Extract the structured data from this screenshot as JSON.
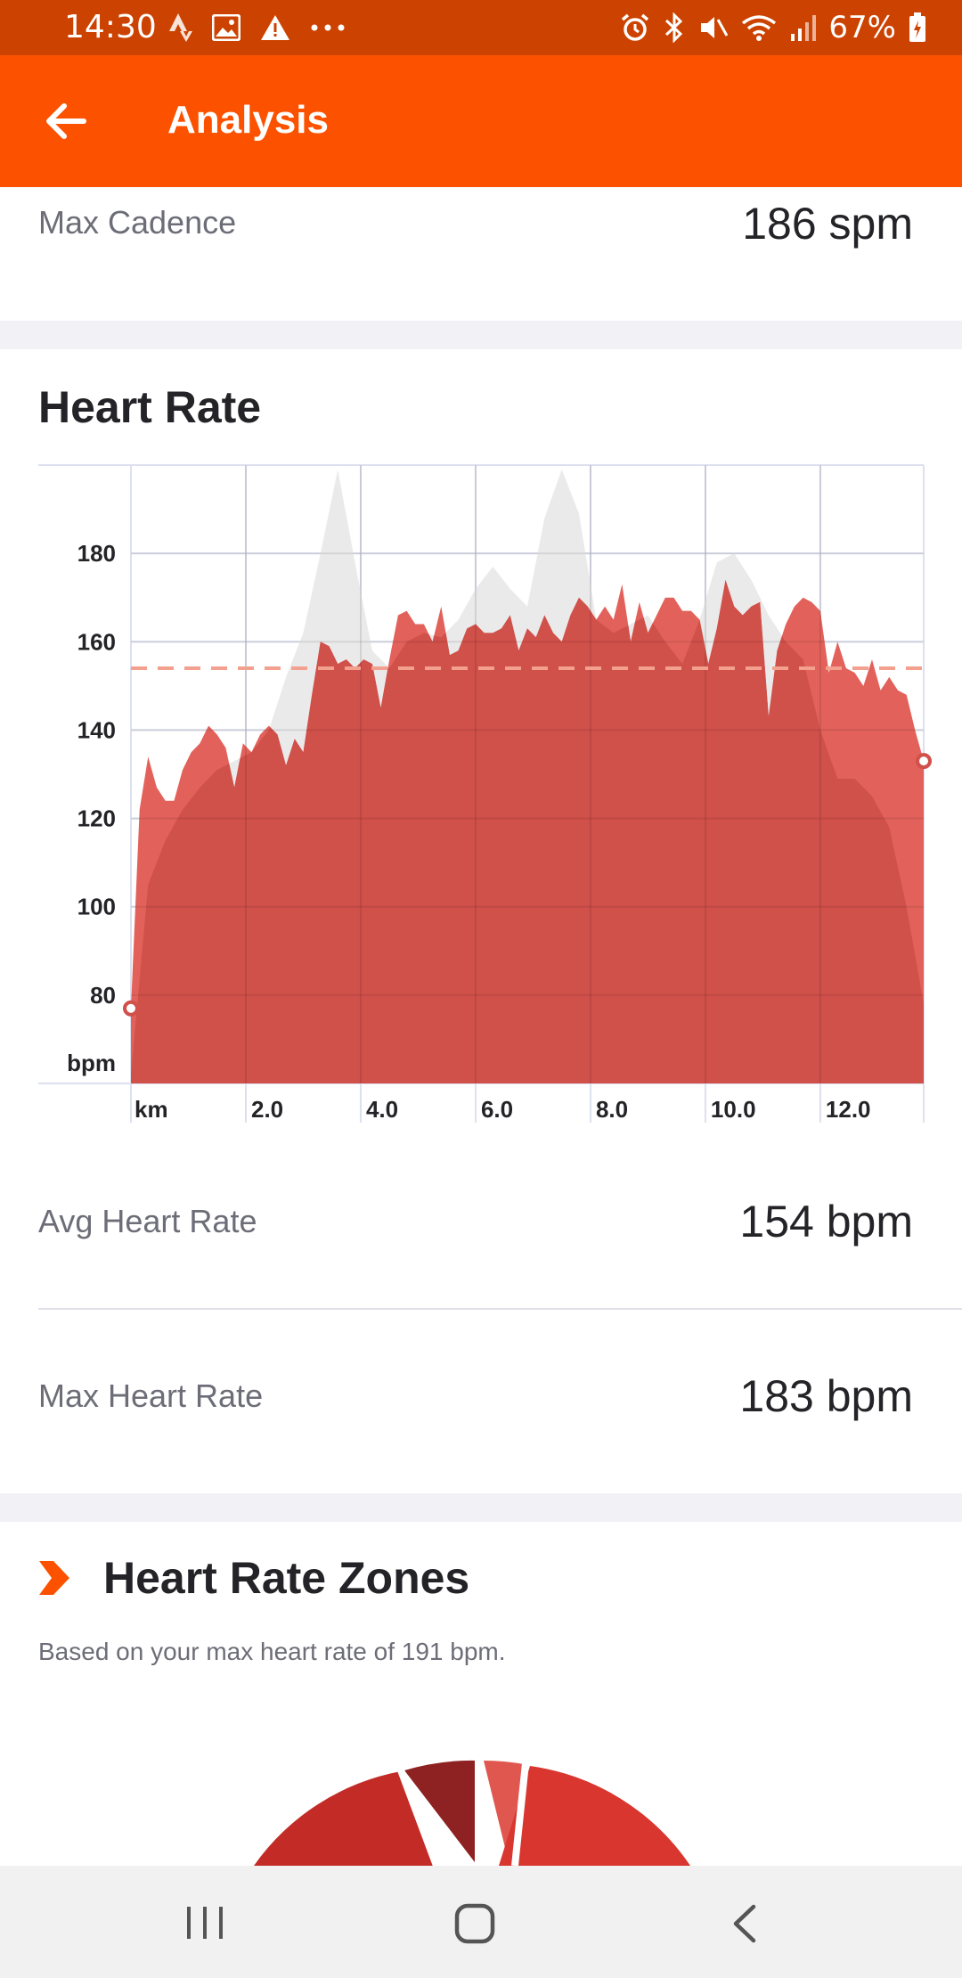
{
  "status_bar": {
    "time": "14:30",
    "icons_left": [
      "strava-icon",
      "image-icon",
      "warning-icon",
      "more-icon"
    ],
    "icons_right": [
      "alarm-icon",
      "bluetooth-icon",
      "mute-icon",
      "wifi-icon",
      "signal-icon",
      "battery-icon"
    ],
    "battery": "67%"
  },
  "app_bar": {
    "title": "Analysis",
    "back_icon": "arrow-left-icon"
  },
  "max_cadence": {
    "label": "Max Cadence",
    "value": "186 spm"
  },
  "heart_rate": {
    "title": "Heart Rate",
    "avg_label": "Avg Heart Rate",
    "avg_value": "154 bpm",
    "max_label": "Max Heart Rate",
    "max_value": "183 bpm"
  },
  "zones": {
    "title": "Heart Rate Zones",
    "note": "Based on your max heart rate of 191 bpm.",
    "icon": "chevron-right-icon",
    "colors": [
      "#c32c26",
      "#8e2222",
      "#e0574f",
      "#d8362e"
    ]
  },
  "colors": {
    "brand": "#fc5200",
    "status_bar": "#cc4200",
    "hr_fill": "#d0504a",
    "hr_fill_light": "#e05a52",
    "avg_line": "#f3a08e",
    "grey_area": "#e8e8e8"
  },
  "chart_data": {
    "type": "area",
    "title": "Heart Rate",
    "xlabel": "km",
    "ylabel": "bpm",
    "xlim": [
      0,
      13.8
    ],
    "ylim": [
      60,
      200
    ],
    "yticks": [
      80,
      100,
      120,
      140,
      160,
      180
    ],
    "xticks": [
      2.0,
      4.0,
      6.0,
      8.0,
      10.0,
      12.0
    ],
    "xtick_labels": [
      "2.0",
      "4.0",
      "6.0",
      "8.0",
      "10.0",
      "12.0"
    ],
    "avg": 154,
    "series": [
      {
        "role": "heart_rate",
        "x": [
          0,
          0.15,
          0.3,
          0.45,
          0.6,
          0.75,
          0.9,
          1.05,
          1.2,
          1.35,
          1.5,
          1.65,
          1.8,
          1.95,
          2.1,
          2.25,
          2.4,
          2.55,
          2.7,
          2.85,
          3.0,
          3.15,
          3.3,
          3.45,
          3.6,
          3.75,
          3.9,
          4.05,
          4.2,
          4.35,
          4.5,
          4.65,
          4.8,
          4.95,
          5.1,
          5.25,
          5.4,
          5.55,
          5.7,
          5.85,
          6.0,
          6.15,
          6.3,
          6.45,
          6.6,
          6.75,
          6.9,
          7.05,
          7.2,
          7.35,
          7.5,
          7.65,
          7.8,
          7.95,
          8.1,
          8.25,
          8.4,
          8.55,
          8.7,
          8.85,
          9.0,
          9.15,
          9.3,
          9.45,
          9.6,
          9.75,
          9.9,
          10.05,
          10.2,
          10.35,
          10.5,
          10.65,
          10.8,
          10.95,
          11.1,
          11.25,
          11.4,
          11.55,
          11.7,
          11.85,
          12.0,
          12.15,
          12.3,
          12.45,
          12.6,
          12.75,
          12.9,
          13.05,
          13.2,
          13.35,
          13.5,
          13.65,
          13.8
        ],
        "values": [
          77,
          122,
          134,
          127,
          124,
          124,
          131,
          135,
          137,
          141,
          139,
          136,
          127,
          137,
          135,
          139,
          141,
          139,
          132,
          138,
          135,
          148,
          160,
          159,
          155,
          156,
          154,
          156,
          155,
          145,
          156,
          166,
          167,
          164,
          164,
          160,
          168,
          157,
          158,
          163,
          164,
          162,
          162,
          163,
          166,
          158,
          163,
          161,
          166,
          162,
          160,
          166,
          170,
          168,
          165,
          168,
          165,
          173,
          160,
          169,
          162,
          166,
          170,
          170,
          167,
          167,
          165,
          155,
          163,
          174,
          168,
          166,
          168,
          169,
          143,
          158,
          164,
          168,
          170,
          169,
          167,
          153,
          160,
          154,
          153,
          150,
          156,
          149,
          152,
          149,
          148,
          140,
          133
        ]
      },
      {
        "role": "background_profile",
        "x": [
          0,
          0.3,
          0.6,
          0.9,
          1.2,
          1.5,
          1.8,
          2.1,
          2.4,
          2.7,
          3.0,
          3.3,
          3.6,
          3.9,
          4.2,
          4.5,
          4.8,
          5.1,
          5.4,
          5.7,
          6.0,
          6.3,
          6.6,
          6.9,
          7.2,
          7.5,
          7.8,
          8.1,
          8.4,
          8.7,
          9.0,
          9.3,
          9.6,
          9.9,
          10.2,
          10.5,
          10.8,
          11.1,
          11.4,
          11.7,
          12.0,
          12.3,
          12.6,
          12.9,
          13.2,
          13.5,
          13.8
        ],
        "values": [
          62,
          105,
          115,
          122,
          127,
          131,
          133,
          135,
          140,
          152,
          162,
          180,
          199,
          178,
          158,
          154,
          160,
          162,
          161,
          165,
          172,
          177,
          172,
          168,
          188,
          199,
          189,
          165,
          162,
          164,
          166,
          160,
          155,
          165,
          178,
          180,
          174,
          166,
          160,
          156,
          140,
          129,
          129,
          125,
          118,
          100,
          78
        ]
      }
    ]
  }
}
